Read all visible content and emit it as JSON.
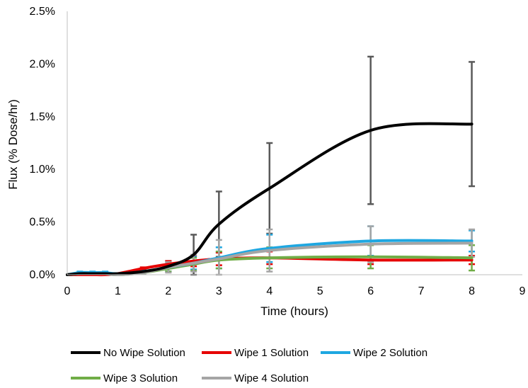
{
  "chart_data": {
    "type": "line",
    "title": "",
    "xlabel": "Time (hours)",
    "ylabel": "Flux (% Dose/hr)",
    "xlim": [
      0,
      9
    ],
    "ylim": [
      0,
      0.025
    ],
    "xticks": [
      0,
      1,
      2,
      3,
      4,
      5,
      6,
      7,
      8,
      9
    ],
    "xtick_labels": [
      "0",
      "1",
      "2",
      "3",
      "4",
      "5",
      "6",
      "7",
      "8",
      "9"
    ],
    "yticks": [
      0,
      0.005,
      0.01,
      0.015,
      0.02,
      0.025
    ],
    "ytick_labels": [
      "0.0%",
      "0.5%",
      "1.0%",
      "1.5%",
      "2.0%",
      "2.5%"
    ],
    "grid": false,
    "legend_position": "bottom",
    "x": [
      0,
      0.25,
      0.5,
      0.75,
      1,
      1.5,
      2,
      2.5,
      3,
      4,
      6,
      8
    ],
    "series": [
      {
        "name": "No Wipe Solution",
        "color": "#000000",
        "values": [
          0,
          0.0001,
          0.0001,
          0.0001,
          0.0001,
          0.0003,
          0.0008,
          0.0019,
          0.0048,
          0.0082,
          0.0137,
          0.0143
        ],
        "error": [
          0,
          0,
          0,
          0,
          0,
          0,
          0.0005,
          0.0019,
          0.0031,
          0.0043,
          0.007,
          0.0059
        ]
      },
      {
        "name": "Wipe 1 Solution",
        "color": "#e60000",
        "values": [
          0,
          0,
          0,
          0,
          0.0001,
          0.0006,
          0.001,
          0.0013,
          0.0015,
          0.0016,
          0.0014,
          0.0014
        ],
        "error": [
          0,
          0,
          0,
          0,
          0,
          0.0001,
          0.0003,
          0.0005,
          0.0006,
          0.0006,
          0.0004,
          0.0004
        ]
      },
      {
        "name": "Wipe 2 Solution",
        "color": "#1ea7e1",
        "values": [
          0,
          0.0002,
          0.0002,
          0.0002,
          0.0001,
          0.0003,
          0.0007,
          0.0011,
          0.0016,
          0.0025,
          0.0032,
          0.0032
        ],
        "error": [
          0,
          0.0001,
          0.0001,
          0.0001,
          0,
          0.0001,
          0.0004,
          0.0006,
          0.001,
          0.0013,
          0.0014,
          0.001
        ]
      },
      {
        "name": "Wipe 3 Solution",
        "color": "#70ad47",
        "values": [
          0,
          0.0001,
          0.0001,
          0.0001,
          0,
          0.0002,
          0.0006,
          0.001,
          0.0014,
          0.0016,
          0.0017,
          0.0016
        ],
        "error": [
          0,
          0,
          0,
          0,
          0,
          0.0001,
          0.0003,
          0.0006,
          0.0008,
          0.001,
          0.0011,
          0.0012
        ]
      },
      {
        "name": "Wipe 4 Solution",
        "color": "#a5a5a5",
        "values": [
          0,
          0.0001,
          0.0001,
          0.0001,
          0,
          0.0002,
          0.0007,
          0.0011,
          0.0015,
          0.0023,
          0.0029,
          0.003
        ],
        "error": [
          0,
          0,
          0,
          0,
          0,
          0.0001,
          0.0005,
          0.0008,
          0.0018,
          0.002,
          0.0017,
          0.0013
        ]
      }
    ]
  }
}
